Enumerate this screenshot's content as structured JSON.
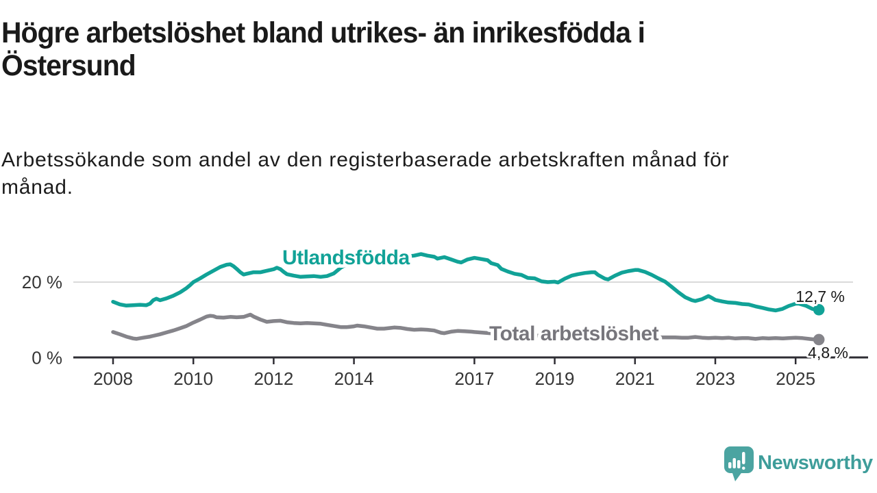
{
  "header": {
    "title_lines": [
      "Högre arbetslöshet bland utrikes- än inrikesfödda i",
      "Östersund"
    ],
    "subtitle_lines": [
      "Arbetssökande som andel av den registerbaserade arbetskraften månad för",
      "månad."
    ]
  },
  "footer": {
    "brand_name": "Newsworthy",
    "brand_color": "#3E9D9A",
    "icon_color": "#4BA4A1",
    "icon": "bar-chart-speech-bubble-icon"
  },
  "chart_data": {
    "type": "line",
    "x_axis": {
      "ticks": [
        2008,
        2010,
        2012,
        2014,
        2017,
        2019,
        2021,
        2023,
        2025
      ],
      "tick_labels": [
        "2008",
        "2010",
        "2012",
        "2014",
        "2017",
        "2019",
        "2021",
        "2023",
        "2025"
      ],
      "range": [
        2008,
        2025.58
      ]
    },
    "y_axis": {
      "unit": "%",
      "ticks": [
        {
          "value": 20,
          "label": "20 %",
          "gridline": true
        },
        {
          "value": 0,
          "label": "0 %",
          "gridline": false
        }
      ],
      "range": [
        0,
        29
      ]
    },
    "colors": {
      "axis": "#2E2D33",
      "grid": "#DADADA",
      "tick_text": "#363636",
      "value_text": "#1A1A1A",
      "halo": "#FFFFFF"
    },
    "series": [
      {
        "name": "Total arbetslöshet",
        "color": "#85848A",
        "label_color": "#77767C",
        "end_label": "4,8 %",
        "end_value": 4.8,
        "points": [
          [
            2008.0,
            6.8
          ],
          [
            2008.17,
            6.2
          ],
          [
            2008.33,
            5.6
          ],
          [
            2008.5,
            5.1
          ],
          [
            2008.58,
            5.0
          ],
          [
            2008.75,
            5.3
          ],
          [
            2008.92,
            5.6
          ],
          [
            2009.0,
            5.8
          ],
          [
            2009.17,
            6.2
          ],
          [
            2009.33,
            6.7
          ],
          [
            2009.5,
            7.2
          ],
          [
            2009.67,
            7.8
          ],
          [
            2009.83,
            8.4
          ],
          [
            2010.0,
            9.3
          ],
          [
            2010.17,
            10.1
          ],
          [
            2010.33,
            10.9
          ],
          [
            2010.42,
            11.1
          ],
          [
            2010.5,
            11.0
          ],
          [
            2010.58,
            10.7
          ],
          [
            2010.75,
            10.6
          ],
          [
            2010.92,
            10.8
          ],
          [
            2011.08,
            10.7
          ],
          [
            2011.25,
            10.8
          ],
          [
            2011.42,
            11.4
          ],
          [
            2011.5,
            10.9
          ],
          [
            2011.67,
            10.1
          ],
          [
            2011.83,
            9.5
          ],
          [
            2012.0,
            9.7
          ],
          [
            2012.17,
            9.8
          ],
          [
            2012.33,
            9.4
          ],
          [
            2012.5,
            9.2
          ],
          [
            2012.67,
            9.1
          ],
          [
            2012.83,
            9.2
          ],
          [
            2013.0,
            9.1
          ],
          [
            2013.17,
            9.0
          ],
          [
            2013.33,
            8.7
          ],
          [
            2013.5,
            8.4
          ],
          [
            2013.67,
            8.1
          ],
          [
            2013.83,
            8.1
          ],
          [
            2014.0,
            8.3
          ],
          [
            2014.08,
            8.5
          ],
          [
            2014.25,
            8.3
          ],
          [
            2014.42,
            8.0
          ],
          [
            2014.58,
            7.7
          ],
          [
            2014.75,
            7.7
          ],
          [
            2014.92,
            7.9
          ],
          [
            2015.0,
            8.0
          ],
          [
            2015.17,
            7.9
          ],
          [
            2015.33,
            7.6
          ],
          [
            2015.5,
            7.4
          ],
          [
            2015.67,
            7.5
          ],
          [
            2015.83,
            7.4
          ],
          [
            2016.0,
            7.2
          ],
          [
            2016.17,
            6.6
          ],
          [
            2016.25,
            6.5
          ],
          [
            2016.42,
            6.9
          ],
          [
            2016.58,
            7.1
          ],
          [
            2016.75,
            7.0
          ],
          [
            2016.92,
            6.9
          ],
          [
            2017.0,
            6.8
          ],
          [
            2017.25,
            6.6
          ],
          [
            2017.5,
            6.4
          ],
          [
            2017.75,
            6.2
          ],
          [
            2018.0,
            6.1
          ],
          [
            2018.33,
            6.0
          ],
          [
            2018.67,
            5.8
          ],
          [
            2019.0,
            5.7
          ],
          [
            2019.33,
            5.6
          ],
          [
            2019.67,
            5.5
          ],
          [
            2020.0,
            5.5
          ],
          [
            2020.33,
            5.6
          ],
          [
            2020.67,
            5.5
          ],
          [
            2021.0,
            5.5
          ],
          [
            2021.33,
            5.4
          ],
          [
            2021.67,
            5.4
          ],
          [
            2022.0,
            5.4
          ],
          [
            2022.17,
            5.3
          ],
          [
            2022.33,
            5.3
          ],
          [
            2022.5,
            5.5
          ],
          [
            2022.67,
            5.3
          ],
          [
            2022.83,
            5.2
          ],
          [
            2023.0,
            5.3
          ],
          [
            2023.17,
            5.2
          ],
          [
            2023.33,
            5.3
          ],
          [
            2023.5,
            5.1
          ],
          [
            2023.67,
            5.2
          ],
          [
            2023.83,
            5.2
          ],
          [
            2024.0,
            5.0
          ],
          [
            2024.17,
            5.2
          ],
          [
            2024.33,
            5.1
          ],
          [
            2024.5,
            5.2
          ],
          [
            2024.67,
            5.1
          ],
          [
            2024.83,
            5.2
          ],
          [
            2025.0,
            5.3
          ],
          [
            2025.17,
            5.2
          ],
          [
            2025.33,
            5.0
          ],
          [
            2025.5,
            4.8
          ],
          [
            2025.58,
            4.8
          ]
        ]
      },
      {
        "name": "Utlandsfödda",
        "color": "#11A297",
        "label_color": "#11A297",
        "end_label": "12,7 %",
        "end_value": 12.7,
        "points": [
          [
            2008.0,
            14.8
          ],
          [
            2008.17,
            14.1
          ],
          [
            2008.33,
            13.8
          ],
          [
            2008.5,
            13.9
          ],
          [
            2008.67,
            14.0
          ],
          [
            2008.83,
            13.9
          ],
          [
            2008.92,
            14.3
          ],
          [
            2009.0,
            15.2
          ],
          [
            2009.08,
            15.6
          ],
          [
            2009.17,
            15.2
          ],
          [
            2009.33,
            15.7
          ],
          [
            2009.5,
            16.4
          ],
          [
            2009.67,
            17.3
          ],
          [
            2009.83,
            18.4
          ],
          [
            2009.92,
            19.2
          ],
          [
            2010.0,
            20.0
          ],
          [
            2010.17,
            21.0
          ],
          [
            2010.33,
            22.0
          ],
          [
            2010.5,
            23.0
          ],
          [
            2010.67,
            24.0
          ],
          [
            2010.83,
            24.6
          ],
          [
            2010.92,
            24.7
          ],
          [
            2011.0,
            24.2
          ],
          [
            2011.08,
            23.5
          ],
          [
            2011.17,
            22.6
          ],
          [
            2011.25,
            22.0
          ],
          [
            2011.33,
            22.2
          ],
          [
            2011.5,
            22.6
          ],
          [
            2011.67,
            22.6
          ],
          [
            2011.83,
            23.0
          ],
          [
            2012.0,
            23.4
          ],
          [
            2012.08,
            23.8
          ],
          [
            2012.17,
            23.4
          ],
          [
            2012.25,
            22.7
          ],
          [
            2012.33,
            22.1
          ],
          [
            2012.5,
            21.7
          ],
          [
            2012.67,
            21.4
          ],
          [
            2012.83,
            21.5
          ],
          [
            2013.0,
            21.6
          ],
          [
            2013.17,
            21.4
          ],
          [
            2013.33,
            21.6
          ],
          [
            2013.5,
            22.3
          ],
          [
            2013.67,
            23.8
          ],
          [
            2013.83,
            24.8
          ],
          [
            2014.0,
            25.3
          ],
          [
            2014.25,
            25.6
          ],
          [
            2014.5,
            26.0
          ],
          [
            2014.75,
            26.2
          ],
          [
            2015.0,
            26.4
          ],
          [
            2015.25,
            26.7
          ],
          [
            2015.5,
            27.0
          ],
          [
            2015.67,
            27.4
          ],
          [
            2015.83,
            27.0
          ],
          [
            2016.0,
            26.7
          ],
          [
            2016.08,
            26.2
          ],
          [
            2016.25,
            26.6
          ],
          [
            2016.42,
            26.0
          ],
          [
            2016.58,
            25.4
          ],
          [
            2016.67,
            25.2
          ],
          [
            2016.83,
            26.0
          ],
          [
            2017.0,
            26.4
          ],
          [
            2017.17,
            26.1
          ],
          [
            2017.33,
            25.8
          ],
          [
            2017.42,
            25.0
          ],
          [
            2017.58,
            24.5
          ],
          [
            2017.67,
            23.5
          ],
          [
            2017.83,
            22.8
          ],
          [
            2018.0,
            22.2
          ],
          [
            2018.17,
            21.9
          ],
          [
            2018.33,
            21.1
          ],
          [
            2018.5,
            21.0
          ],
          [
            2018.67,
            20.2
          ],
          [
            2018.83,
            20.0
          ],
          [
            2019.0,
            20.1
          ],
          [
            2019.08,
            19.9
          ],
          [
            2019.25,
            20.9
          ],
          [
            2019.42,
            21.7
          ],
          [
            2019.58,
            22.1
          ],
          [
            2019.75,
            22.4
          ],
          [
            2019.92,
            22.6
          ],
          [
            2020.0,
            22.6
          ],
          [
            2020.08,
            21.9
          ],
          [
            2020.25,
            20.9
          ],
          [
            2020.33,
            20.7
          ],
          [
            2020.5,
            21.7
          ],
          [
            2020.67,
            22.5
          ],
          [
            2020.83,
            22.9
          ],
          [
            2021.0,
            23.2
          ],
          [
            2021.08,
            23.2
          ],
          [
            2021.25,
            22.7
          ],
          [
            2021.42,
            21.9
          ],
          [
            2021.58,
            21.0
          ],
          [
            2021.75,
            20.1
          ],
          [
            2021.92,
            18.7
          ],
          [
            2022.08,
            17.3
          ],
          [
            2022.25,
            16.0
          ],
          [
            2022.42,
            15.2
          ],
          [
            2022.5,
            15.0
          ],
          [
            2022.67,
            15.5
          ],
          [
            2022.83,
            16.3
          ],
          [
            2022.92,
            15.8
          ],
          [
            2023.0,
            15.3
          ],
          [
            2023.17,
            14.9
          ],
          [
            2023.33,
            14.6
          ],
          [
            2023.5,
            14.5
          ],
          [
            2023.67,
            14.2
          ],
          [
            2023.83,
            14.1
          ],
          [
            2024.0,
            13.6
          ],
          [
            2024.17,
            13.2
          ],
          [
            2024.33,
            12.8
          ],
          [
            2024.5,
            12.5
          ],
          [
            2024.67,
            12.9
          ],
          [
            2024.83,
            13.7
          ],
          [
            2025.0,
            14.3
          ],
          [
            2025.08,
            14.3
          ],
          [
            2025.25,
            13.8
          ],
          [
            2025.42,
            12.9
          ],
          [
            2025.58,
            12.7
          ]
        ]
      }
    ]
  }
}
